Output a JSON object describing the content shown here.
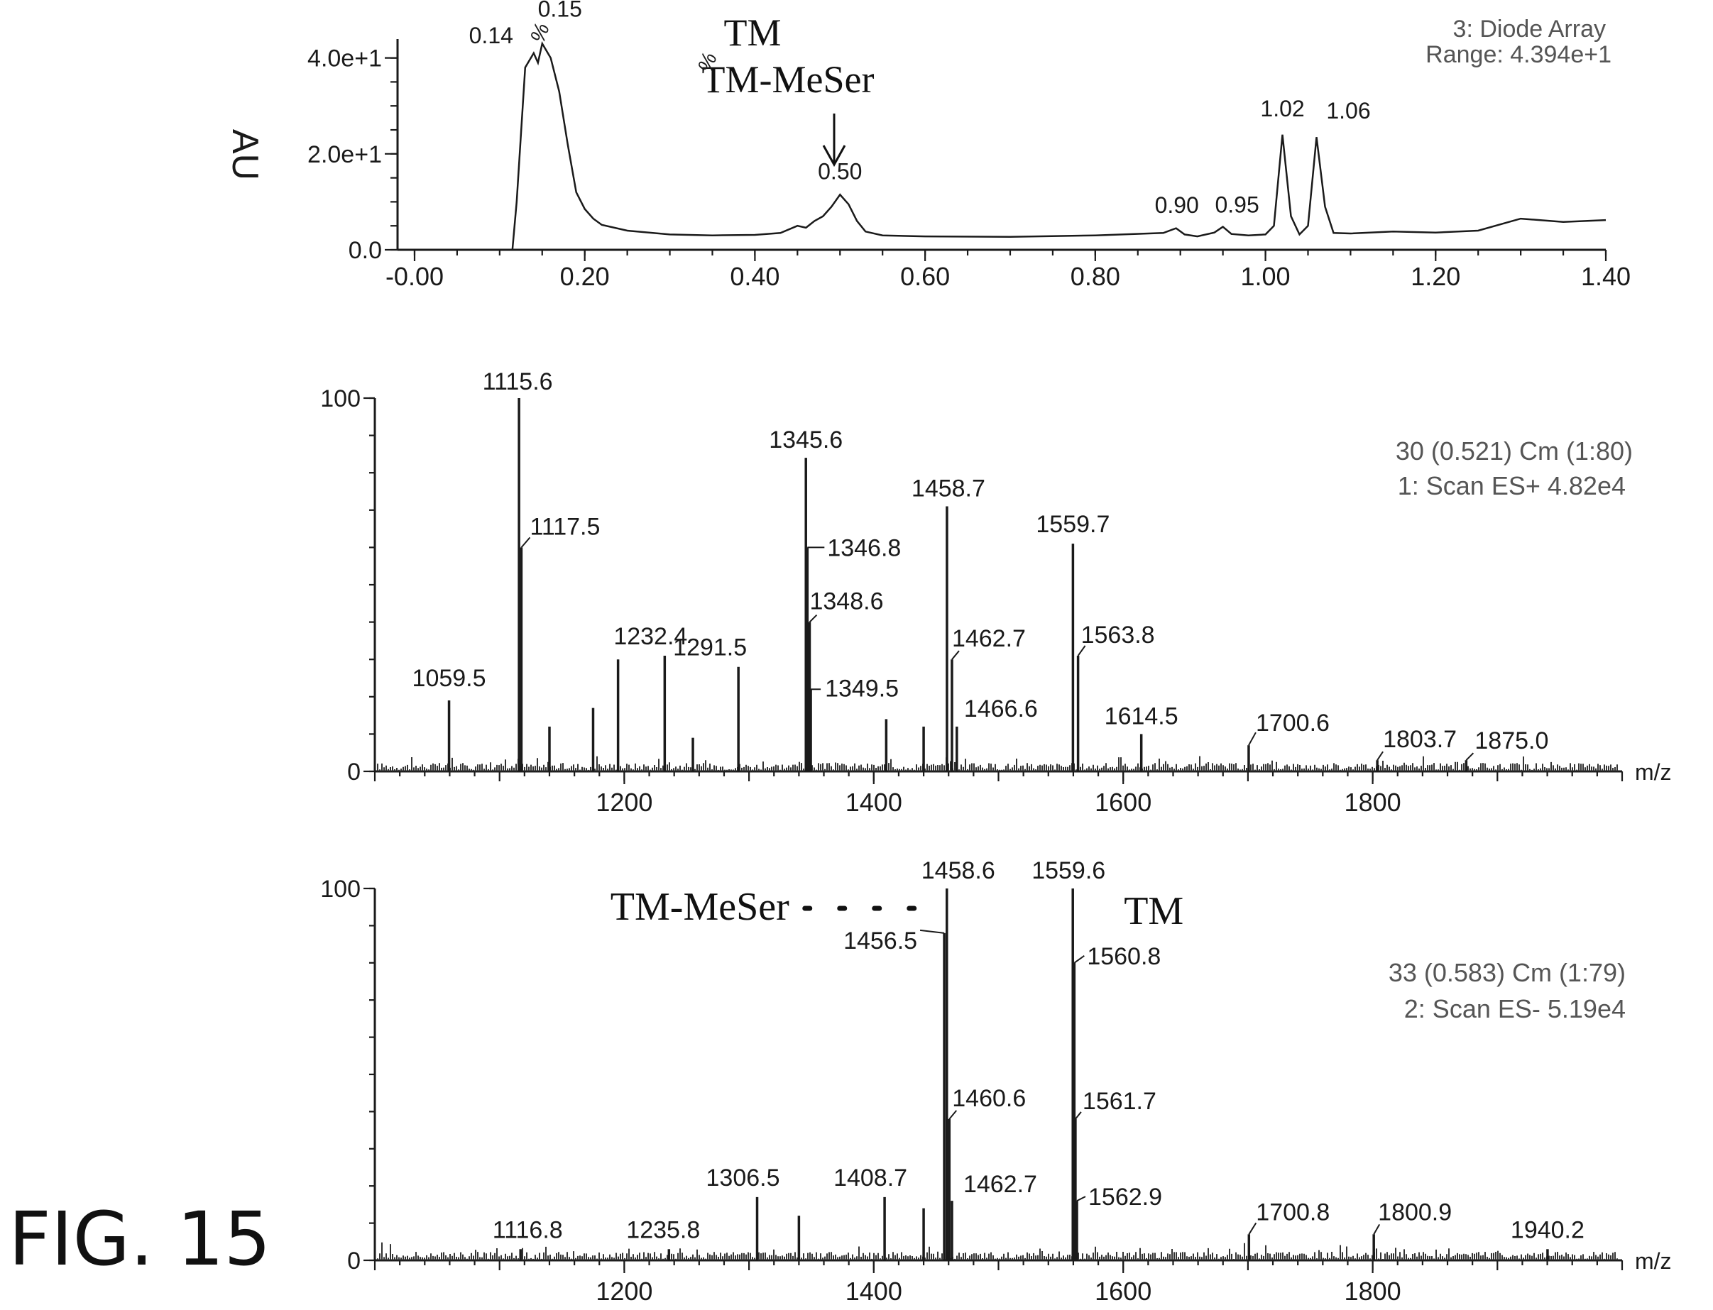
{
  "figure_label": "FIG. 15",
  "chart_data": [
    {
      "id": "chromatogram",
      "type": "line",
      "ylabel": "AU",
      "header": [
        "3: Diode Array",
        "Range: 4.394e+1"
      ],
      "xlim": [
        -0.02,
        1.4
      ],
      "ylim": [
        0,
        43.94
      ],
      "x_ticks": [
        "-0.00",
        "0.20",
        "0.40",
        "0.60",
        "0.80",
        "1.00",
        "1.20",
        "1.40"
      ],
      "x_tick_values": [
        0.0,
        0.2,
        0.4,
        0.6,
        0.8,
        1.0,
        1.2,
        1.4
      ],
      "y_ticks": [
        "0.0",
        "2.0e+1",
        "4.0e+1"
      ],
      "y_tick_values": [
        0,
        20,
        40
      ],
      "series": [
        {
          "x": [
            -0.02,
            0.1,
            0.115,
            0.12,
            0.13,
            0.14,
            0.145,
            0.15,
            0.16,
            0.17,
            0.18,
            0.19,
            0.2,
            0.21,
            0.22,
            0.25,
            0.3,
            0.35,
            0.4,
            0.43,
            0.45,
            0.46,
            0.47,
            0.48,
            0.49,
            0.5,
            0.51,
            0.52,
            0.53,
            0.55,
            0.6,
            0.7,
            0.8,
            0.88,
            0.895,
            0.905,
            0.92,
            0.94,
            0.95,
            0.96,
            0.98,
            1.0,
            1.01,
            1.02,
            1.03,
            1.04,
            1.05,
            1.06,
            1.07,
            1.08,
            1.1,
            1.15,
            1.2,
            1.25,
            1.3,
            1.35,
            1.4
          ],
          "y": [
            0,
            0,
            0,
            10,
            38,
            41,
            39,
            43,
            40,
            33,
            22,
            12,
            8.5,
            6.5,
            5.2,
            4.0,
            3.2,
            3.0,
            3.1,
            3.5,
            5.0,
            4.6,
            6.0,
            7.0,
            9.0,
            11.5,
            9.5,
            6.0,
            3.8,
            3.0,
            2.8,
            2.7,
            3.0,
            3.5,
            4.5,
            3.2,
            2.8,
            3.6,
            4.8,
            3.3,
            3.0,
            3.2,
            5.0,
            24,
            7.0,
            3.2,
            5.0,
            23.5,
            9.0,
            3.5,
            3.4,
            3.8,
            3.6,
            4.0,
            6.5,
            5.8,
            6.2
          ]
        }
      ],
      "annotations": [
        {
          "x": 0.14,
          "label": "0.14"
        },
        {
          "x": 0.15,
          "label": "0.15"
        },
        {
          "x": 0.5,
          "label": "0.50"
        },
        {
          "x": 0.9,
          "label": "0.90"
        },
        {
          "x": 0.95,
          "label": "0.95"
        },
        {
          "x": 1.02,
          "label": "1.02"
        },
        {
          "x": 1.06,
          "label": "1.06"
        }
      ],
      "callout": [
        "TM",
        "TM-MeSer"
      ],
      "callout_x": 0.51
    },
    {
      "id": "ms-positive",
      "type": "bar",
      "header": [
        "30 (0.521) Cm (1:80)",
        "1: Scan ES+ 4.82e4"
      ],
      "xlabel": "m/z",
      "ylabel": "%",
      "xlim": [
        1000,
        2000
      ],
      "ylim": [
        0,
        100
      ],
      "x_ticks": [
        "1200",
        "1400",
        "1600",
        "1800"
      ],
      "x_tick_values": [
        1200,
        1400,
        1600,
        1800
      ],
      "y_ticks": [
        "0",
        "100"
      ],
      "y_tick_values": [
        0,
        100
      ],
      "peaks": [
        {
          "mz": 1059.5,
          "intensity": 19,
          "label": "1059.5"
        },
        {
          "mz": 1115.6,
          "intensity": 100,
          "label": "1115.6"
        },
        {
          "mz": 1117.5,
          "intensity": 60,
          "label": "1117.5"
        },
        {
          "mz": 1140,
          "intensity": 12,
          "label": ""
        },
        {
          "mz": 1175,
          "intensity": 17,
          "label": ""
        },
        {
          "mz": 1195,
          "intensity": 30,
          "label": ""
        },
        {
          "mz": 1232.4,
          "intensity": 31,
          "label": "1232.4"
        },
        {
          "mz": 1255,
          "intensity": 9,
          "label": ""
        },
        {
          "mz": 1291.5,
          "intensity": 28,
          "label": "1291.5"
        },
        {
          "mz": 1345.6,
          "intensity": 84,
          "label": "1345.6"
        },
        {
          "mz": 1346.8,
          "intensity": 60,
          "label": "1346.8"
        },
        {
          "mz": 1348.6,
          "intensity": 40,
          "label": "1348.6"
        },
        {
          "mz": 1349.5,
          "intensity": 22,
          "label": "1349.5"
        },
        {
          "mz": 1410,
          "intensity": 14,
          "label": ""
        },
        {
          "mz": 1440,
          "intensity": 12,
          "label": ""
        },
        {
          "mz": 1458.7,
          "intensity": 71,
          "label": "1458.7"
        },
        {
          "mz": 1462.7,
          "intensity": 30,
          "label": "1462.7"
        },
        {
          "mz": 1466.6,
          "intensity": 12,
          "label": "1466.6"
        },
        {
          "mz": 1559.7,
          "intensity": 61,
          "label": "1559.7"
        },
        {
          "mz": 1563.8,
          "intensity": 31,
          "label": "1563.8"
        },
        {
          "mz": 1614.5,
          "intensity": 10,
          "label": "1614.5"
        },
        {
          "mz": 1700.6,
          "intensity": 7,
          "label": "1700.6"
        },
        {
          "mz": 1803.7,
          "intensity": 3,
          "label": "1803.7"
        },
        {
          "mz": 1875.0,
          "intensity": 3,
          "label": "1875.0"
        }
      ]
    },
    {
      "id": "ms-negative",
      "type": "bar",
      "header": [
        "33 (0.583) Cm (1:79)",
        "2: Scan ES- 5.19e4"
      ],
      "xlabel": "m/z",
      "ylabel": "%",
      "xlim": [
        1000,
        2000
      ],
      "ylim": [
        0,
        100
      ],
      "x_ticks": [
        "1200",
        "1400",
        "1600",
        "1800"
      ],
      "x_tick_values": [
        1200,
        1400,
        1600,
        1800
      ],
      "y_ticks": [
        "0",
        "100"
      ],
      "y_tick_values": [
        0,
        100
      ],
      "peaks": [
        {
          "mz": 1116.8,
          "intensity": 3,
          "label": "1116.8"
        },
        {
          "mz": 1235.8,
          "intensity": 3,
          "label": "1235.8"
        },
        {
          "mz": 1306.5,
          "intensity": 17,
          "label": "1306.5"
        },
        {
          "mz": 1340,
          "intensity": 12,
          "label": ""
        },
        {
          "mz": 1408.7,
          "intensity": 17,
          "label": "1408.7"
        },
        {
          "mz": 1440,
          "intensity": 14,
          "label": ""
        },
        {
          "mz": 1456.5,
          "intensity": 88,
          "label": "1456.5"
        },
        {
          "mz": 1458.6,
          "intensity": 100,
          "label": "1458.6"
        },
        {
          "mz": 1460.6,
          "intensity": 38,
          "label": "1460.6"
        },
        {
          "mz": 1462.7,
          "intensity": 16,
          "label": "1462.7"
        },
        {
          "mz": 1559.6,
          "intensity": 100,
          "label": "1559.6"
        },
        {
          "mz": 1560.8,
          "intensity": 80,
          "label": "1560.8"
        },
        {
          "mz": 1561.7,
          "intensity": 38,
          "label": "1561.7"
        },
        {
          "mz": 1562.9,
          "intensity": 16,
          "label": "1562.9"
        },
        {
          "mz": 1700.8,
          "intensity": 7,
          "label": "1700.8"
        },
        {
          "mz": 1800.9,
          "intensity": 7,
          "label": "1800.9"
        },
        {
          "mz": 1940.2,
          "intensity": 3,
          "label": "1940.2"
        }
      ],
      "markers": [
        {
          "label": "TM-MeSer",
          "mz": 1458.6
        },
        {
          "label": "TM",
          "mz": 1559.6
        }
      ]
    }
  ]
}
